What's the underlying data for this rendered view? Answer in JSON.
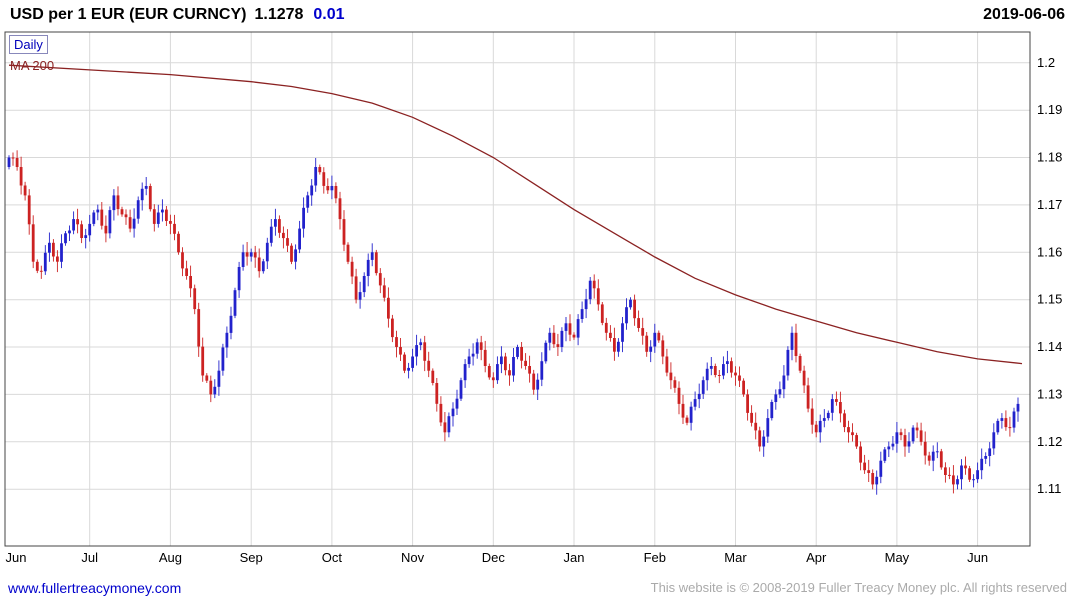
{
  "header": {
    "title": "USD per 1 EUR (EUR CURNCY)",
    "last_price": "1.1278",
    "change": "0.01",
    "date": "2019-06-06"
  },
  "legend": {
    "timeframe": "Daily",
    "ma_label": "MA 200"
  },
  "footer": {
    "link": "www.fullertreacymoney.com",
    "copyright": "This website is © 2008-2019 Fuller Treacy Money plc. All rights reserved"
  },
  "colors": {
    "up": "#2222cc",
    "down": "#cc2222",
    "ma": "#8b2222",
    "grid": "#d9d9d9",
    "border": "#444444",
    "axis_text": "#000000",
    "accent_blue": "#0000bb",
    "copyright_gray": "#aaaaaa"
  },
  "chart_data": {
    "type": "candlestick",
    "title": "USD per 1 EUR (EUR CURNCY)",
    "timeframe": "Daily",
    "xlabel": "",
    "ylabel": "",
    "grid": true,
    "ylim": [
      1.098,
      1.2065
    ],
    "x_labels": [
      "Jun",
      "Jul",
      "Aug",
      "Sep",
      "Oct",
      "Nov",
      "Dec",
      "Jan",
      "Feb",
      "Mar",
      "Apr",
      "May",
      "Jun"
    ],
    "y_ticks": [
      {
        "value": 1.2,
        "label": "1.2"
      },
      {
        "value": 1.19,
        "label": "1.19"
      },
      {
        "value": 1.18,
        "label": "1.18"
      },
      {
        "value": 1.17,
        "label": "1.17"
      },
      {
        "value": 1.16,
        "label": "1.16"
      },
      {
        "value": 1.15,
        "label": "1.15"
      },
      {
        "value": 1.14,
        "label": "1.14"
      },
      {
        "value": 1.13,
        "label": "1.13"
      },
      {
        "value": 1.12,
        "label": "1.12"
      },
      {
        "value": 1.11,
        "label": "1.11"
      }
    ],
    "points_per_month": 10,
    "closes": [
      1.18,
      1.178,
      1.172,
      1.158,
      1.156,
      1.162,
      1.158,
      1.164,
      1.167,
      1.163,
      1.166,
      1.169,
      1.164,
      1.172,
      1.168,
      1.165,
      1.171,
      1.174,
      1.166,
      1.169,
      1.166,
      1.16,
      1.155,
      1.148,
      1.134,
      1.13,
      1.135,
      1.143,
      1.152,
      1.16,
      1.16,
      1.156,
      1.162,
      1.167,
      1.163,
      1.158,
      1.165,
      1.172,
      1.178,
      1.174,
      1.174,
      1.167,
      1.158,
      1.15,
      1.155,
      1.16,
      1.153,
      1.146,
      1.14,
      1.135,
      1.138,
      1.141,
      1.135,
      1.128,
      1.122,
      1.127,
      1.133,
      1.138,
      1.141,
      1.136,
      1.133,
      1.138,
      1.134,
      1.14,
      1.136,
      1.131,
      1.137,
      1.143,
      1.14,
      1.145,
      1.142,
      1.148,
      1.154,
      1.149,
      1.143,
      1.139,
      1.145,
      1.15,
      1.144,
      1.139,
      1.143,
      1.138,
      1.133,
      1.128,
      1.124,
      1.129,
      1.133,
      1.136,
      1.134,
      1.137,
      1.134,
      1.13,
      1.124,
      1.119,
      1.125,
      1.13,
      1.134,
      1.143,
      1.135,
      1.127,
      1.122,
      1.125,
      1.129,
      1.126,
      1.122,
      1.119,
      1.114,
      1.111,
      1.116,
      1.119,
      1.122,
      1.119,
      1.123,
      1.12,
      1.116,
      1.118,
      1.113,
      1.111,
      1.115,
      1.112,
      1.114,
      1.117,
      1.122,
      1.125,
      1.123,
      1.128
    ],
    "series": [
      {
        "name": "MA 200",
        "type": "line",
        "points": [
          [
            0,
            1.1995
          ],
          [
            1,
            1.1985
          ],
          [
            2,
            1.1975
          ],
          [
            3,
            1.196
          ],
          [
            3.5,
            1.195
          ],
          [
            4,
            1.1935
          ],
          [
            4.5,
            1.1915
          ],
          [
            5,
            1.1885
          ],
          [
            5.5,
            1.1845
          ],
          [
            6,
            1.18
          ],
          [
            6.5,
            1.1745
          ],
          [
            7,
            1.169
          ],
          [
            7.5,
            1.164
          ],
          [
            8,
            1.159
          ],
          [
            8.5,
            1.1545
          ],
          [
            9,
            1.151
          ],
          [
            9.5,
            1.148
          ],
          [
            10,
            1.1455
          ],
          [
            10.5,
            1.143
          ],
          [
            11,
            1.141
          ],
          [
            11.5,
            1.139
          ],
          [
            12,
            1.1375
          ],
          [
            12.55,
            1.1365
          ]
        ]
      }
    ]
  }
}
